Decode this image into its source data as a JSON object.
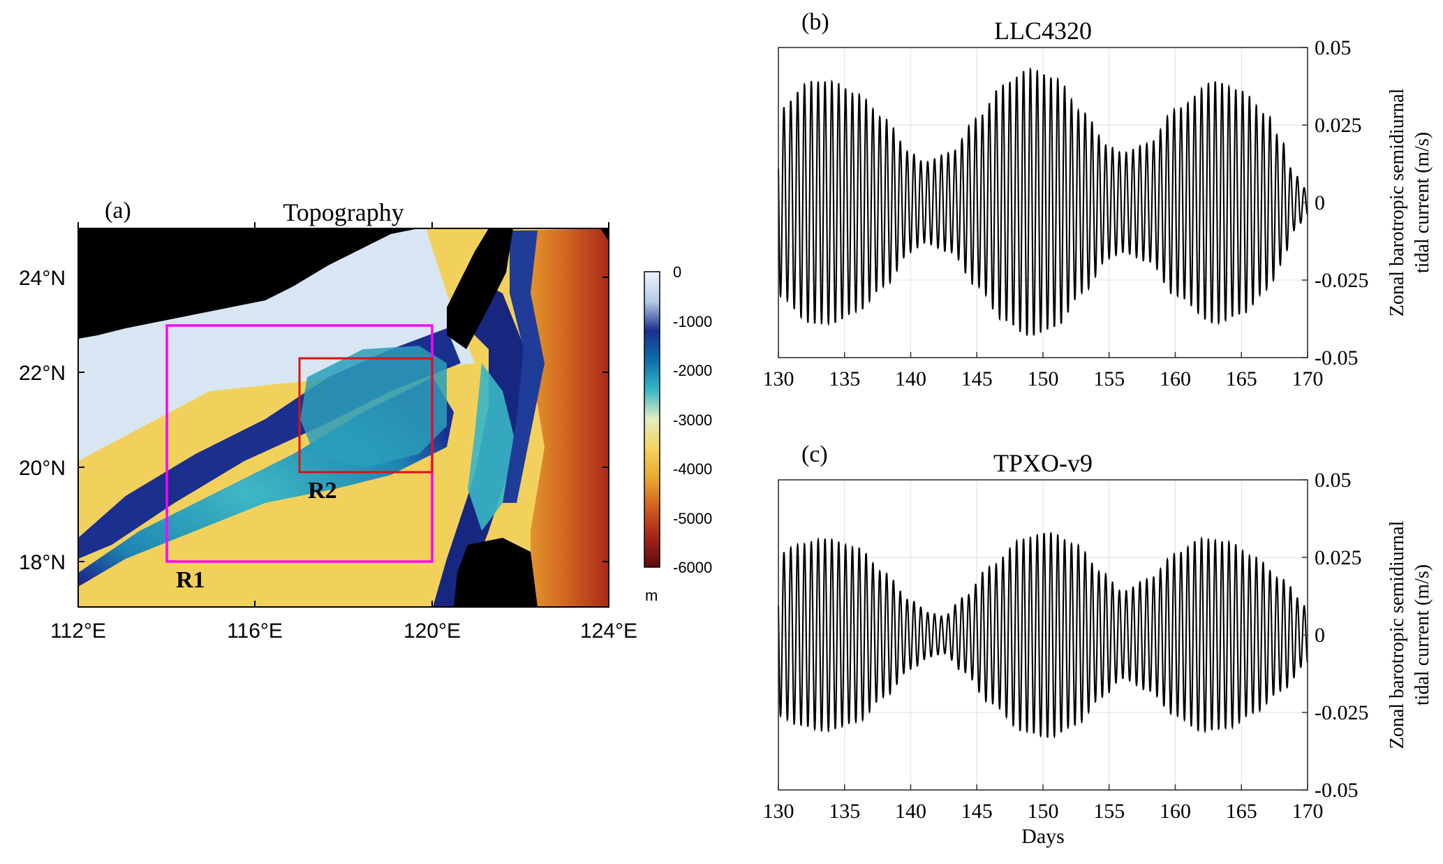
{
  "panel_a": {
    "label": "(a)",
    "title": "Topography",
    "x_ticks": [
      "112°E",
      "116°E",
      "120°E",
      "124°E"
    ],
    "y_ticks": [
      "24°N",
      "22°N",
      "20°N",
      "18°N"
    ],
    "colorbar_ticks": [
      "0",
      "-1000",
      "-2000",
      "-3000",
      "-4000",
      "-5000",
      "-6000"
    ],
    "colorbar_unit": "m",
    "colorbar_colors": [
      "#eef4fa",
      "#b4cce6",
      "#1b2f8f",
      "#0c6faa",
      "#37b7c6",
      "#e6edc2",
      "#f2d35a",
      "#e9a830",
      "#d05e1f",
      "#a32418",
      "#5a0d10"
    ],
    "land_color": "#000000",
    "regions": [
      {
        "label": "R1",
        "color": "#ff00ff",
        "lon": [
          114,
          120
        ],
        "lat": [
          18,
          23
        ]
      },
      {
        "label": "R2",
        "color": "#e01010",
        "lon": [
          117,
          120
        ],
        "lat": [
          19.9,
          22.3
        ]
      }
    ]
  },
  "chart_data": [
    {
      "type": "line",
      "label": "(b)",
      "title": "LLC4320",
      "xlabel": "",
      "ylabel": "Zonal barotropic semidiurnal\ntidal current (m/s)",
      "xlim": [
        130,
        170
      ],
      "ylim": [
        -0.05,
        0.05
      ],
      "x_ticks": [
        "130",
        "135",
        "140",
        "145",
        "150",
        "155",
        "160",
        "165",
        "170"
      ],
      "y_ticks": [
        "0.05",
        "0.025",
        "0",
        "-0.025",
        "-0.05"
      ],
      "grid": true,
      "period_days": 0.5175,
      "envelope": {
        "x": [
          130,
          132.5,
          134,
          136,
          138,
          140,
          141,
          143,
          145,
          147,
          149,
          151,
          153,
          155,
          156,
          158,
          160,
          163,
          165,
          167,
          168,
          169,
          170
        ],
        "y": [
          0.03,
          0.039,
          0.039,
          0.035,
          0.027,
          0.016,
          0.013,
          0.016,
          0.027,
          0.038,
          0.043,
          0.04,
          0.029,
          0.018,
          0.016,
          0.019,
          0.03,
          0.039,
          0.036,
          0.028,
          0.02,
          0.009,
          0.004
        ]
      }
    },
    {
      "type": "line",
      "label": "(c)",
      "title": "TPXO-v9",
      "xlabel": "Days",
      "ylabel": "Zonal barotropic semidiurnal\ntidal current (m/s)",
      "xlim": [
        130,
        170
      ],
      "ylim": [
        -0.05,
        0.05
      ],
      "x_ticks": [
        "130",
        "135",
        "140",
        "145",
        "150",
        "155",
        "160",
        "165",
        "170"
      ],
      "y_ticks": [
        "0.05",
        "0.025",
        "0",
        "-0.025",
        "-0.05"
      ],
      "grid": true,
      "period_days": 0.5175,
      "envelope": {
        "x": [
          130,
          131.5,
          133.5,
          136,
          138,
          140,
          141.5,
          142.5,
          144,
          146,
          148.5,
          150.5,
          152.5,
          154.5,
          156,
          158,
          160,
          162,
          164,
          166,
          168,
          170
        ],
        "y": [
          0.026,
          0.029,
          0.031,
          0.028,
          0.02,
          0.011,
          0.007,
          0.006,
          0.012,
          0.022,
          0.031,
          0.033,
          0.029,
          0.02,
          0.014,
          0.018,
          0.026,
          0.031,
          0.03,
          0.025,
          0.018,
          0.009
        ]
      }
    }
  ]
}
